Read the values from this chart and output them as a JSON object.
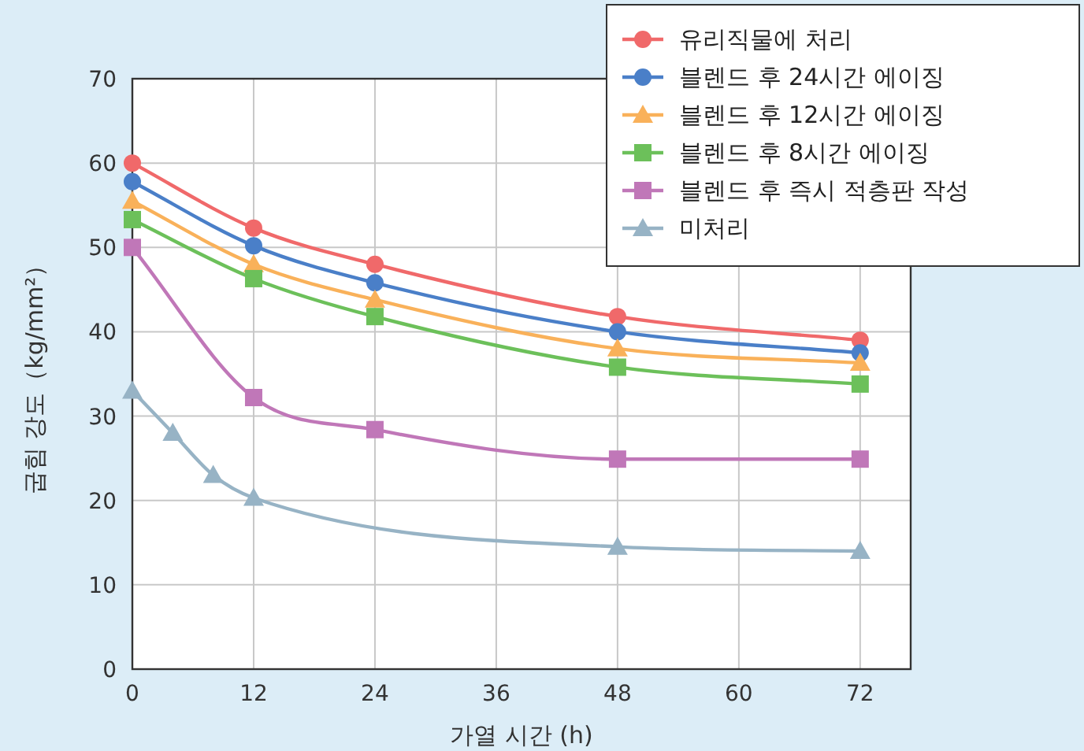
{
  "chart_data": {
    "type": "line",
    "xlabel": "가열 시간 (h)",
    "ylabel": "굽힘 강도（kg/mm²）",
    "xlim": [
      0,
      77
    ],
    "ylim": [
      0,
      70
    ],
    "xticks": [
      0,
      12,
      24,
      36,
      48,
      60,
      72
    ],
    "yticks": [
      0,
      10,
      20,
      30,
      40,
      50,
      60,
      70
    ],
    "grid": true,
    "legend": "top right",
    "series": [
      {
        "name": "유리직물에 처리",
        "color": "#f0696a",
        "marker": "circle",
        "x": [
          0,
          12,
          24,
          48,
          72
        ],
        "values": [
          60,
          52.3,
          48,
          41.8,
          39
        ]
      },
      {
        "name": "블렌드 후 24시간 에이징",
        "color": "#4a7fc8",
        "marker": "circle",
        "x": [
          0,
          12,
          24,
          48,
          72
        ],
        "values": [
          57.8,
          50.2,
          45.8,
          40,
          37.5
        ]
      },
      {
        "name": "블렌드 후 12시간 에이징",
        "color": "#f9b15a",
        "marker": "triangle",
        "x": [
          0,
          12,
          24,
          48,
          72
        ],
        "values": [
          55.5,
          48,
          43.8,
          38,
          36.3
        ]
      },
      {
        "name": "블렌드 후 8시간 에이징",
        "color": "#6cc05a",
        "marker": "square",
        "x": [
          0,
          12,
          24,
          48,
          72
        ],
        "values": [
          53.3,
          46.3,
          41.8,
          35.8,
          33.8
        ]
      },
      {
        "name": "블렌드 후 즉시 적층판 작성",
        "color": "#c077b8",
        "marker": "square",
        "x": [
          0,
          12,
          24,
          48,
          72
        ],
        "values": [
          50,
          32.2,
          28.4,
          24.9,
          24.9
        ]
      },
      {
        "name": "미처리",
        "color": "#97b3c5",
        "marker": "triangle",
        "x": [
          0,
          4,
          8,
          12,
          48,
          72
        ],
        "values": [
          33,
          28,
          23,
          20.3,
          14.5,
          14
        ]
      }
    ]
  }
}
